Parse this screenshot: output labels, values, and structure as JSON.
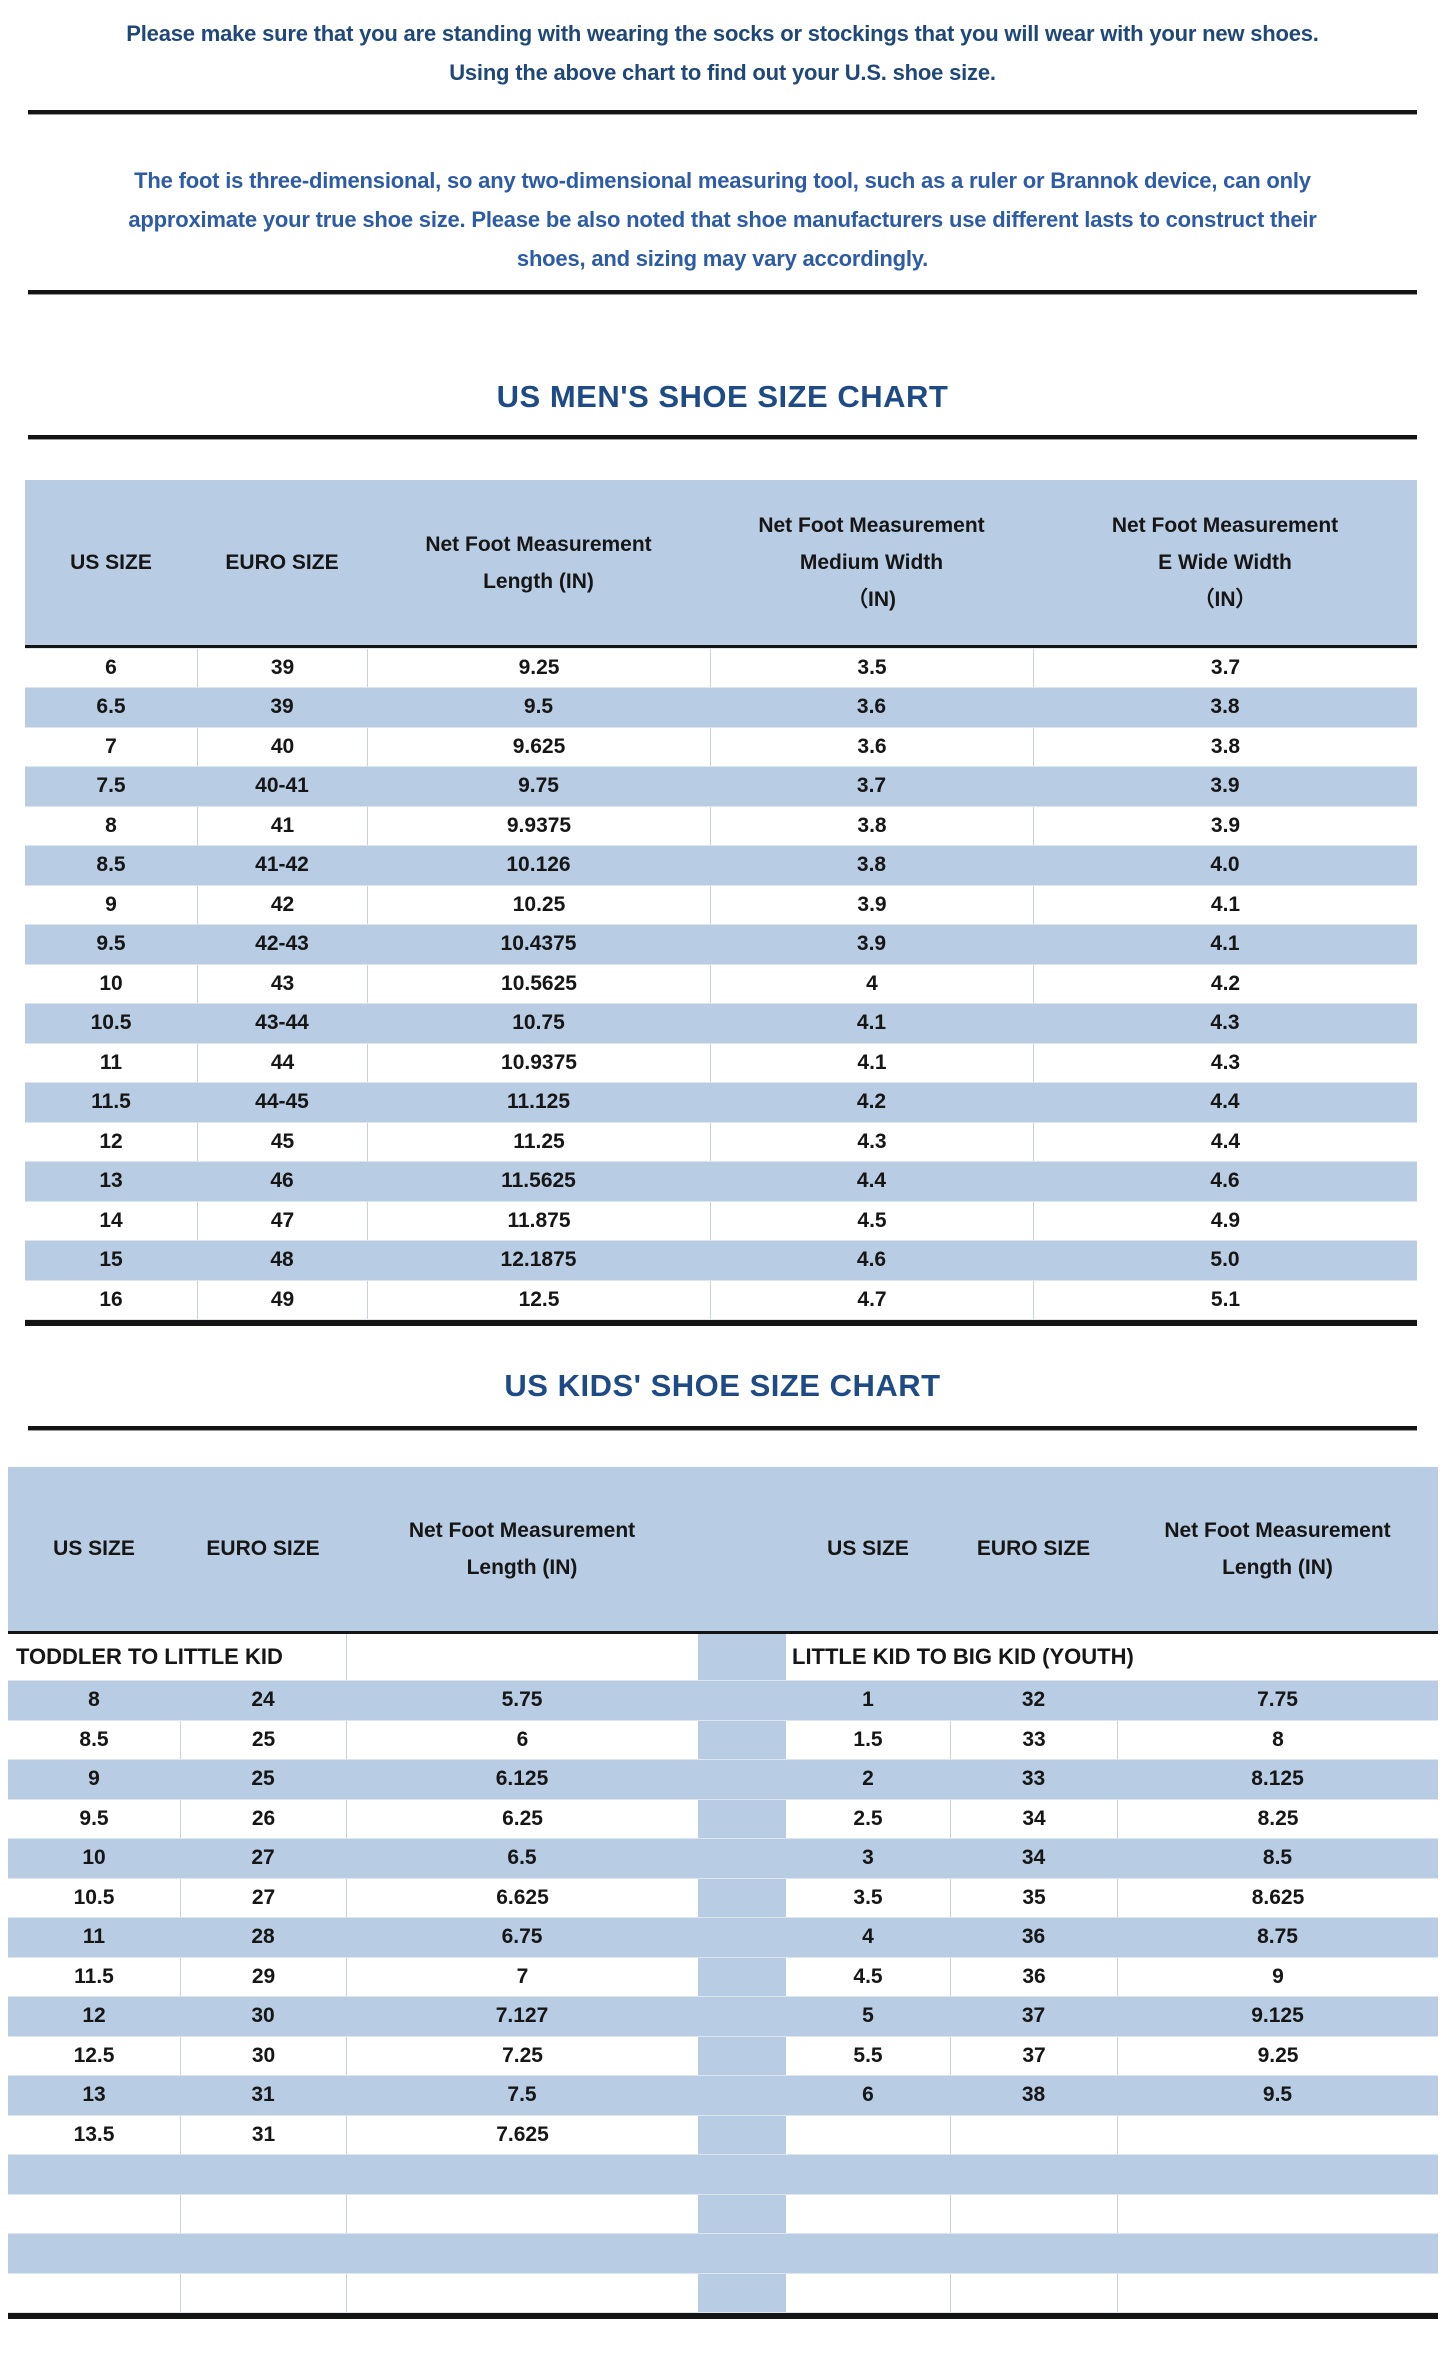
{
  "colors": {
    "band": "#b8cce4",
    "rule": "#141414",
    "title": "#1e4b85",
    "intro_text": "#1f4878",
    "note_text": "#2d5ba5"
  },
  "intro": {
    "lines": [
      "Please make sure that you are standing with wearing the socks or stockings that you will wear with your new shoes.",
      "Using the above chart to find out your U.S. shoe size."
    ]
  },
  "note": {
    "lines": [
      "The foot is three-dimensional, so any two-dimensional measuring tool, such as a ruler or Brannok device, can only",
      "approximate your true shoe size. Please be also noted that shoe manufacturers use different lasts to construct their",
      "shoes, and sizing may vary accordingly."
    ]
  },
  "mens_chart": {
    "title": "US MEN'S SHOE SIZE CHART",
    "columns": [
      {
        "lines": [
          "US SIZE"
        ]
      },
      {
        "lines": [
          "EURO SIZE"
        ]
      },
      {
        "lines": [
          "Net Foot Measurement",
          "Length (IN)"
        ]
      },
      {
        "lines": [
          "Net Foot Measurement",
          "Medium Width",
          "（IN)"
        ]
      },
      {
        "lines": [
          "Net Foot Measurement",
          "E Wide Width",
          "（IN）"
        ]
      }
    ],
    "rows": [
      [
        "6",
        "39",
        "9.25",
        "3.5",
        "3.7"
      ],
      [
        "6.5",
        "39",
        "9.5",
        "3.6",
        "3.8"
      ],
      [
        "7",
        "40",
        "9.625",
        "3.6",
        "3.8"
      ],
      [
        "7.5",
        "40-41",
        "9.75",
        "3.7",
        "3.9"
      ],
      [
        "8",
        "41",
        "9.9375",
        "3.8",
        "3.9"
      ],
      [
        "8.5",
        "41-42",
        "10.126",
        "3.8",
        "4.0"
      ],
      [
        "9",
        "42",
        "10.25",
        "3.9",
        "4.1"
      ],
      [
        "9.5",
        "42-43",
        "10.4375",
        "3.9",
        "4.1"
      ],
      [
        "10",
        "43",
        "10.5625",
        "4",
        "4.2"
      ],
      [
        "10.5",
        "43-44",
        "10.75",
        "4.1",
        "4.3"
      ],
      [
        "11",
        "44",
        "10.9375",
        "4.1",
        "4.3"
      ],
      [
        "11.5",
        "44-45",
        "11.125",
        "4.2",
        "4.4"
      ],
      [
        "12",
        "45",
        "11.25",
        "4.3",
        "4.4"
      ],
      [
        "13",
        "46",
        "11.5625",
        "4.4",
        "4.6"
      ],
      [
        "14",
        "47",
        "11.875",
        "4.5",
        "4.9"
      ],
      [
        "15",
        "48",
        "12.1875",
        "4.6",
        "5.0"
      ],
      [
        "16",
        "49",
        "12.5",
        "4.7",
        "5.1"
      ]
    ]
  },
  "kids_chart": {
    "title": "US KIDS' SHOE SIZE CHART",
    "columns": [
      {
        "lines": [
          "US SIZE"
        ]
      },
      {
        "lines": [
          "EURO SIZE"
        ]
      },
      {
        "lines": [
          "Net Foot Measurement",
          "Length (IN)"
        ]
      }
    ],
    "left_section_label": "TODDLER TO LITTLE KID",
    "right_section_label": "LITTLE KID TO BIG KID (YOUTH)",
    "left_rows": [
      [
        "8",
        "24",
        "5.75"
      ],
      [
        "8.5",
        "25",
        "6"
      ],
      [
        "9",
        "25",
        "6.125"
      ],
      [
        "9.5",
        "26",
        "6.25"
      ],
      [
        "10",
        "27",
        "6.5"
      ],
      [
        "10.5",
        "27",
        "6.625"
      ],
      [
        "11",
        "28",
        "6.75"
      ],
      [
        "11.5",
        "29",
        "7"
      ],
      [
        "12",
        "30",
        "7.127"
      ],
      [
        "12.5",
        "30",
        "7.25"
      ],
      [
        "13",
        "31",
        "7.5"
      ],
      [
        "13.5",
        "31",
        "7.625"
      ]
    ],
    "right_rows": [
      [
        "1",
        "32",
        "7.75"
      ],
      [
        "1.5",
        "33",
        "8"
      ],
      [
        "2",
        "33",
        "8.125"
      ],
      [
        "2.5",
        "34",
        "8.25"
      ],
      [
        "3",
        "34",
        "8.5"
      ],
      [
        "3.5",
        "35",
        "8.625"
      ],
      [
        "4",
        "36",
        "8.75"
      ],
      [
        "4.5",
        "36",
        "9"
      ],
      [
        "5",
        "37",
        "9.125"
      ],
      [
        "5.5",
        "37",
        "9.25"
      ],
      [
        "6",
        "38",
        "9.5"
      ],
      [
        "",
        "",
        ""
      ]
    ],
    "trailing_empty_rows": 4
  }
}
